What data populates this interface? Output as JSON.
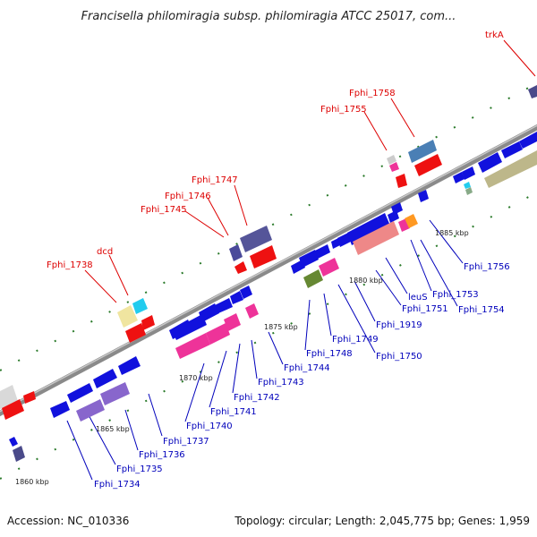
{
  "title": "Francisella philomiragia subsp. philomiragia ATCC 25017, com...",
  "footer": {
    "accession": "Accession: NC_010336",
    "topology": "Topology: circular; Length: 2,045,775 bp; Genes: 1,959"
  },
  "colors": {
    "red_label": "#dd0000",
    "blue_label": "#0000bb",
    "track": "#8a8a8a",
    "tick": "#2a7a2a"
  },
  "kbp_labels": [
    "1860 kbp",
    "1865 kbp",
    "1870 kbp",
    "1875 kbp",
    "1880 kbp",
    "1885 kbp"
  ],
  "red_labels": [
    "Fphi_1738",
    "dcd",
    "Fphi_1745",
    "Fphi_1746",
    "Fphi_1747",
    "Fphi_1755",
    "Fphi_1758",
    "trkA"
  ],
  "blue_labels": [
    "Fphi_1734",
    "Fphi_1735",
    "Fphi_1736",
    "Fphi_1737",
    "Fphi_1740",
    "Fphi_1741",
    "Fphi_1742",
    "Fphi_1743",
    "Fphi_1744",
    "Fphi_1748",
    "Fphi_1749",
    "Fphi_1750",
    "Fphi_1919",
    "Fphi_1751",
    "leuS",
    "Fphi_1753",
    "Fphi_1754",
    "Fphi_1756"
  ]
}
